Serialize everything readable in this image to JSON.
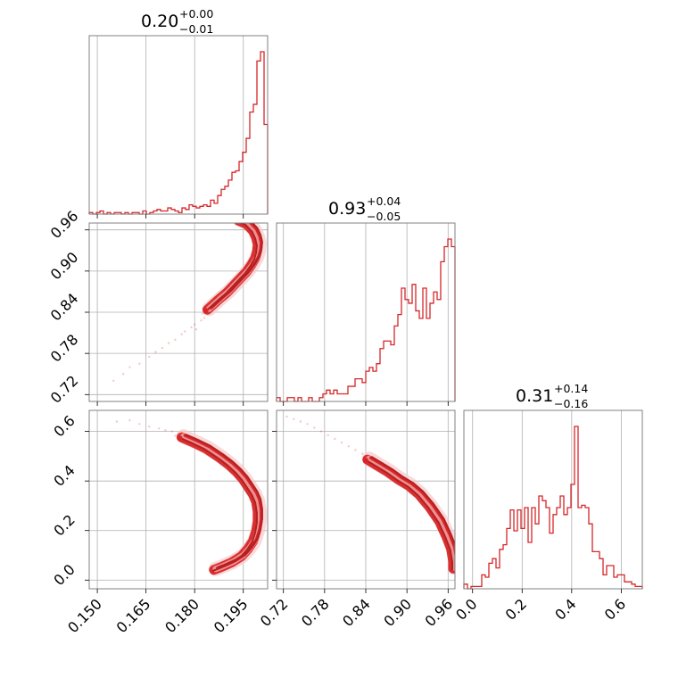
{
  "chart_data": {
    "type": "corner",
    "color": "#d62728",
    "grid": true,
    "parameters": [
      {
        "title": {
          "median": "0.20",
          "plus": "+0.00",
          "minus": "−0.01"
        },
        "range": [
          0.1475,
          0.2025
        ],
        "ticks": [
          0.15,
          0.165,
          0.18,
          0.195
        ],
        "ticklabels": [
          "0.150",
          "0.165",
          "0.180",
          "0.195"
        ]
      },
      {
        "title": {
          "median": "0.93",
          "plus": "+0.04",
          "minus": "−0.05"
        },
        "range": [
          0.71,
          0.97
        ],
        "ticks": [
          0.72,
          0.78,
          0.84,
          0.9,
          0.96
        ],
        "ticklabels": [
          "0.72",
          "0.78",
          "0.84",
          "0.90",
          "0.96"
        ]
      },
      {
        "title": {
          "median": "0.31",
          "plus": "+0.14",
          "minus": "−0.16"
        },
        "range": [
          -0.035,
          0.685
        ],
        "ticks": [
          0.0,
          0.2,
          0.4,
          0.6
        ],
        "ticklabels": [
          "0.0",
          "0.2",
          "0.4",
          "0.6"
        ]
      }
    ],
    "histograms": [
      {
        "param": 0,
        "edges": [
          0.1475,
          0.1486,
          0.1497,
          0.1508,
          0.1519,
          0.153,
          0.1541,
          0.1552,
          0.1563,
          0.1574,
          0.1585,
          0.1596,
          0.1607,
          0.1618,
          0.1629,
          0.164,
          0.1651,
          0.1662,
          0.1673,
          0.1684,
          0.1695,
          0.1706,
          0.1717,
          0.1728,
          0.1739,
          0.175,
          0.1761,
          0.1772,
          0.1783,
          0.1794,
          0.1805,
          0.1816,
          0.1827,
          0.1838,
          0.1849,
          0.186,
          0.1871,
          0.1882,
          0.1893,
          0.1904,
          0.1915,
          0.1926,
          0.1937,
          0.1948,
          0.1959,
          0.197,
          0.1981,
          0.1992,
          0.2003,
          0.2014,
          0.2025
        ],
        "counts": [
          1,
          0,
          1,
          2,
          0,
          1,
          0,
          1,
          1,
          0,
          1,
          0,
          1,
          1,
          0,
          2,
          0,
          1,
          2,
          3,
          2,
          2,
          4,
          3,
          2,
          1,
          4,
          3,
          6,
          5,
          4,
          5,
          6,
          5,
          9,
          7,
          12,
          16,
          18,
          22,
          27,
          28,
          34,
          40,
          49,
          66,
          71,
          99,
          105,
          58
        ]
      },
      {
        "param": 1,
        "edges": [
          0.71,
          0.7152,
          0.7204,
          0.7256,
          0.7308,
          0.736,
          0.7412,
          0.7464,
          0.7516,
          0.7568,
          0.762,
          0.7672,
          0.7724,
          0.7776,
          0.7828,
          0.788,
          0.7932,
          0.7984,
          0.8036,
          0.8088,
          0.814,
          0.8192,
          0.8244,
          0.8296,
          0.8348,
          0.84,
          0.8452,
          0.8504,
          0.8556,
          0.8608,
          0.866,
          0.8712,
          0.8764,
          0.8816,
          0.8868,
          0.892,
          0.8972,
          0.9024,
          0.9076,
          0.9128,
          0.918,
          0.9232,
          0.9284,
          0.9336,
          0.9388,
          0.944,
          0.9492,
          0.9544,
          0.9596,
          0.9648,
          0.97
        ],
        "counts": [
          1,
          0,
          0,
          1,
          1,
          0,
          1,
          0,
          0,
          1,
          0,
          0,
          1,
          2,
          3,
          2,
          3,
          2,
          2,
          2,
          4,
          4,
          6,
          6,
          5,
          8,
          9,
          8,
          10,
          14,
          16,
          16,
          15,
          20,
          23,
          30,
          27,
          26,
          31,
          24,
          22,
          30,
          22,
          26,
          29,
          27,
          37,
          41,
          43,
          41
        ]
      },
      {
        "param": 2,
        "edges": [
          -0.035,
          -0.0206,
          -0.0062,
          0.0082,
          0.0226,
          0.037,
          0.0514,
          0.0658,
          0.0802,
          0.0946,
          0.109,
          0.1234,
          0.1378,
          0.1522,
          0.1666,
          0.181,
          0.1954,
          0.2098,
          0.2242,
          0.2386,
          0.253,
          0.2674,
          0.2818,
          0.2962,
          0.3106,
          0.325,
          0.3394,
          0.3538,
          0.3682,
          0.3826,
          0.397,
          0.4114,
          0.4258,
          0.4402,
          0.4546,
          0.469,
          0.4834,
          0.4978,
          0.5122,
          0.5266,
          0.541,
          0.5554,
          0.5698,
          0.5842,
          0.5986,
          0.613,
          0.6274,
          0.6418,
          0.6562,
          0.6706,
          0.685
        ],
        "counts": [
          2,
          0,
          1,
          1,
          1,
          6,
          5,
          11,
          13,
          9,
          17,
          19,
          26,
          34,
          25,
          34,
          26,
          35,
          20,
          35,
          28,
          40,
          38,
          35,
          24,
          32,
          35,
          40,
          32,
          35,
          45,
          70,
          35,
          36,
          35,
          28,
          16,
          16,
          13,
          6,
          10,
          10,
          5,
          6,
          6,
          3,
          3,
          2,
          1,
          1
        ]
      }
    ],
    "scatter_panels": [
      {
        "xparam": 0,
        "yparam": 1,
        "ridge": [
          [
            0.1845,
            0.845
          ],
          [
            0.188,
            0.86
          ],
          [
            0.1905,
            0.87
          ],
          [
            0.1925,
            0.88
          ],
          [
            0.1945,
            0.89
          ],
          [
            0.1965,
            0.9
          ],
          [
            0.198,
            0.91
          ],
          [
            0.1992,
            0.92
          ],
          [
            0.1998,
            0.93
          ],
          [
            0.2,
            0.94
          ],
          [
            0.1995,
            0.95
          ],
          [
            0.1985,
            0.96
          ],
          [
            0.1965,
            0.97
          ],
          [
            0.194,
            0.975
          ]
        ],
        "thickness": [
          [
            0.0025,
            0.004
          ],
          [
            0.003,
            0.005
          ],
          [
            0.0035,
            0.006
          ],
          [
            0.004,
            0.007
          ],
          [
            0.004,
            0.008
          ],
          [
            0.0035,
            0.008
          ],
          [
            0.003,
            0.007
          ],
          [
            0.0022,
            0.006
          ]
        ],
        "sparse_points": [
          [
            0.155,
            0.74
          ],
          [
            0.158,
            0.75
          ],
          [
            0.16,
            0.76
          ],
          [
            0.163,
            0.765
          ],
          [
            0.166,
            0.775
          ],
          [
            0.168,
            0.782
          ],
          [
            0.17,
            0.788
          ],
          [
            0.172,
            0.795
          ],
          [
            0.174,
            0.8
          ],
          [
            0.176,
            0.808
          ],
          [
            0.177,
            0.812
          ],
          [
            0.179,
            0.818
          ],
          [
            0.18,
            0.822
          ],
          [
            0.182,
            0.828
          ],
          [
            0.183,
            0.832
          ],
          [
            0.1805,
            0.815
          ],
          [
            0.1825,
            0.838
          ],
          [
            0.1835,
            0.842
          ],
          [
            0.1855,
            0.848
          ]
        ]
      },
      {
        "xparam": 0,
        "yparam": 2,
        "ridge": [
          [
            0.1765,
            0.58
          ],
          [
            0.18,
            0.56
          ],
          [
            0.184,
            0.535
          ],
          [
            0.188,
            0.5
          ],
          [
            0.191,
            0.47
          ],
          [
            0.1935,
            0.44
          ],
          [
            0.1955,
            0.41
          ],
          [
            0.197,
            0.38
          ],
          [
            0.1985,
            0.35
          ],
          [
            0.1995,
            0.32
          ],
          [
            0.2,
            0.28
          ],
          [
            0.2,
            0.24
          ],
          [
            0.1995,
            0.2
          ],
          [
            0.1985,
            0.16
          ],
          [
            0.197,
            0.13
          ],
          [
            0.195,
            0.1
          ],
          [
            0.192,
            0.075
          ],
          [
            0.1885,
            0.055
          ],
          [
            0.1865,
            0.045
          ]
        ],
        "sparse_points": [
          [
            0.156,
            0.64
          ],
          [
            0.16,
            0.645
          ],
          [
            0.163,
            0.63
          ],
          [
            0.166,
            0.62
          ],
          [
            0.169,
            0.612
          ],
          [
            0.171,
            0.605
          ],
          [
            0.173,
            0.6
          ],
          [
            0.175,
            0.59
          ],
          [
            0.174,
            0.582
          ]
        ]
      },
      {
        "xparam": 1,
        "yparam": 2,
        "ridge": [
          [
            0.845,
            0.49
          ],
          [
            0.86,
            0.465
          ],
          [
            0.875,
            0.44
          ],
          [
            0.89,
            0.41
          ],
          [
            0.905,
            0.385
          ],
          [
            0.92,
            0.35
          ],
          [
            0.935,
            0.3
          ],
          [
            0.95,
            0.24
          ],
          [
            0.96,
            0.18
          ],
          [
            0.967,
            0.13
          ],
          [
            0.97,
            0.08
          ],
          [
            0.97,
            0.05
          ]
        ],
        "sparse_points": [
          [
            0.725,
            0.66
          ],
          [
            0.735,
            0.65
          ],
          [
            0.745,
            0.64
          ],
          [
            0.755,
            0.63
          ],
          [
            0.765,
            0.615
          ],
          [
            0.775,
            0.6
          ],
          [
            0.785,
            0.585
          ],
          [
            0.795,
            0.57
          ],
          [
            0.805,
            0.555
          ],
          [
            0.815,
            0.54
          ],
          [
            0.825,
            0.525
          ],
          [
            0.835,
            0.51
          ]
        ]
      }
    ]
  }
}
